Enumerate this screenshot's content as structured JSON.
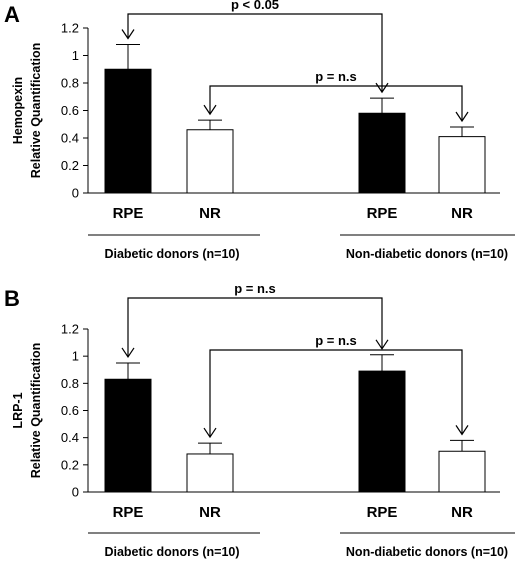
{
  "chart_data": [
    {
      "panel": "A",
      "type": "bar",
      "ylabel": [
        "Hemopexin",
        "Relative Quantification"
      ],
      "ylim": [
        0,
        1.2
      ],
      "yticks": [
        "0",
        "0.2",
        "0.4",
        "0.6",
        "0.8",
        "1",
        "1.2"
      ],
      "categories": [
        "RPE",
        "NR",
        "RPE",
        "NR"
      ],
      "values": [
        0.9,
        0.46,
        0.58,
        0.41
      ],
      "errors": [
        0.18,
        0.07,
        0.11,
        0.07
      ],
      "fills": [
        "#000000",
        "#ffffff",
        "#000000",
        "#ffffff"
      ],
      "groups": [
        "Diabetic donors (n=10)",
        "Non-diabetic donors (n=10)"
      ],
      "comparisons": [
        {
          "from": 0,
          "to": 2,
          "label": "p < 0.05"
        },
        {
          "from": 1,
          "to": 3,
          "label": "p = n.s"
        }
      ]
    },
    {
      "panel": "B",
      "type": "bar",
      "ylabel": [
        "LRP-1",
        "Relative Quantification"
      ],
      "ylim": [
        0,
        1.2
      ],
      "yticks": [
        "0",
        "0.2",
        "0.4",
        "0.6",
        "0.8",
        "1",
        "1.2"
      ],
      "categories": [
        "RPE",
        "NR",
        "RPE",
        "NR"
      ],
      "values": [
        0.83,
        0.28,
        0.89,
        0.3
      ],
      "errors": [
        0.12,
        0.08,
        0.12,
        0.08
      ],
      "fills": [
        "#000000",
        "#ffffff",
        "#000000",
        "#ffffff"
      ],
      "groups": [
        "Diabetic donors (n=10)",
        "Non-diabetic donors (n=10)"
      ],
      "comparisons": [
        {
          "from": 0,
          "to": 2,
          "label": "p = n.s"
        },
        {
          "from": 1,
          "to": 3,
          "label": "p = n.s"
        }
      ]
    }
  ]
}
